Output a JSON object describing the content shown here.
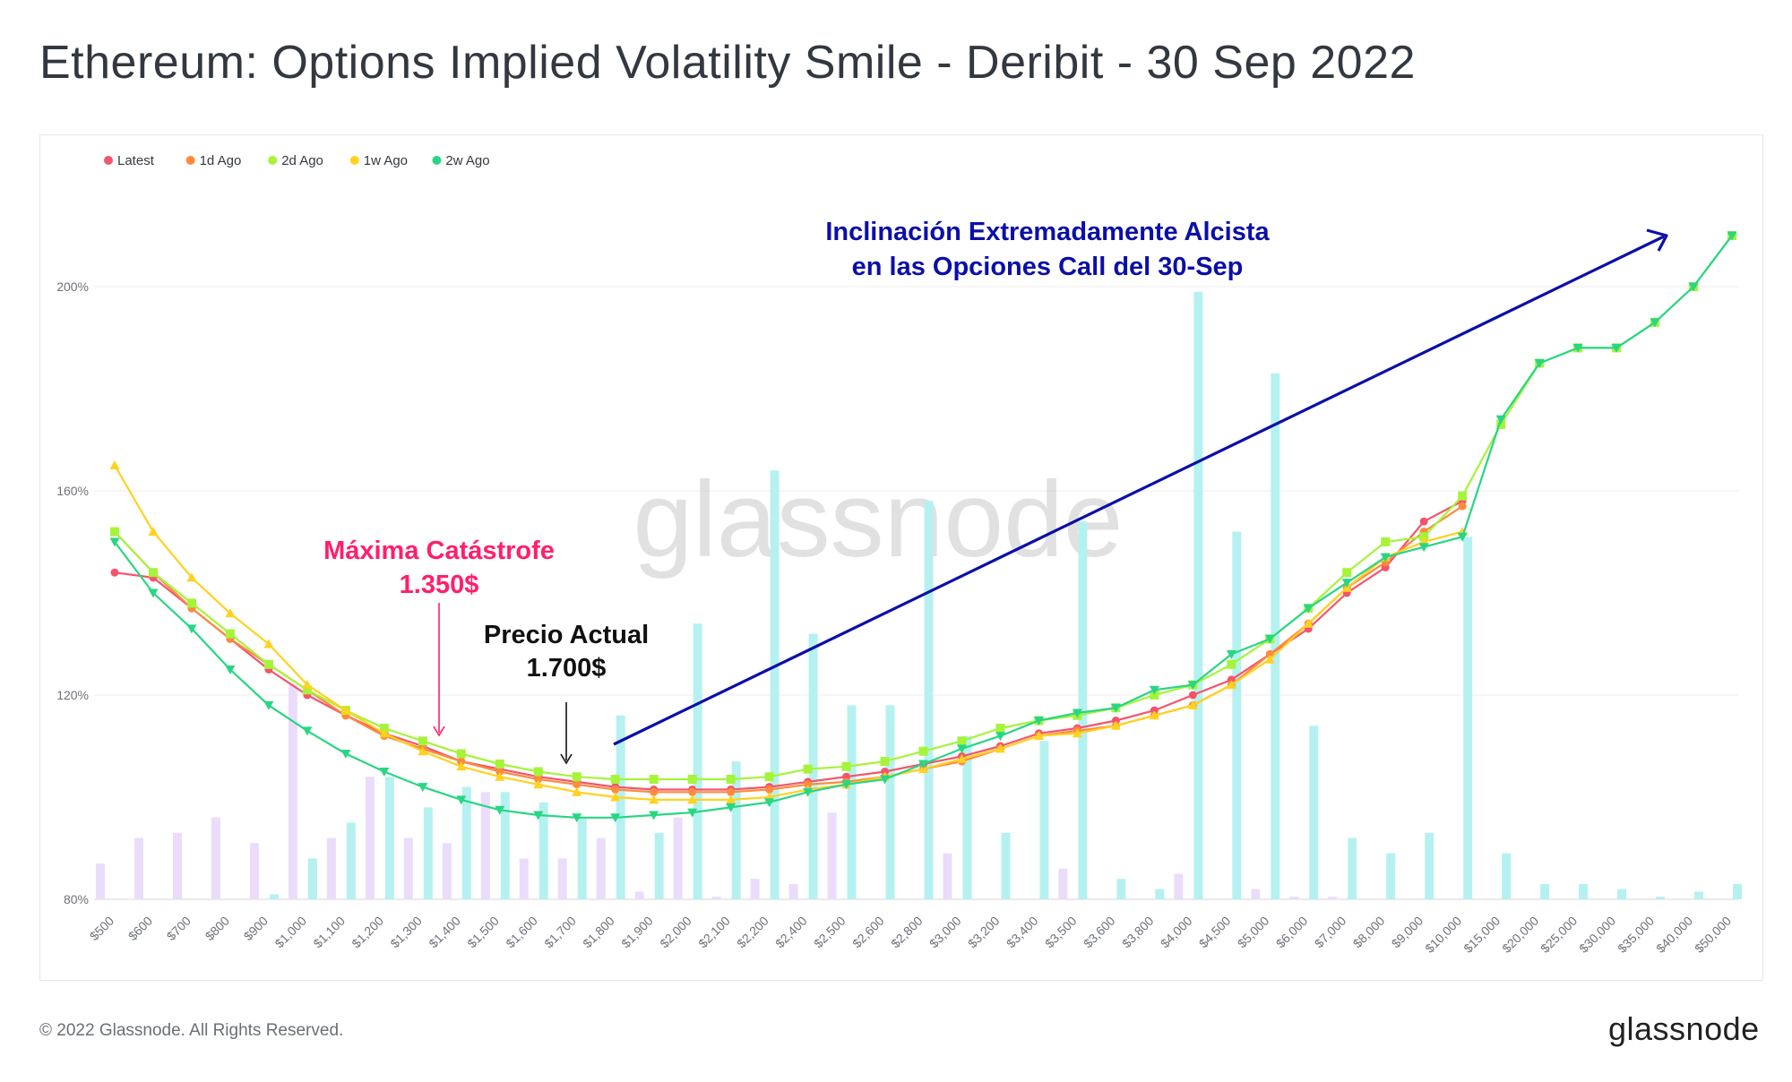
{
  "title": "Ethereum: Options Implied Volatility Smile - Deribit - 30 Sep 2022",
  "watermark": "glassnode",
  "footer": {
    "copyright": "© 2022 Glassnode. All Rights Reserved.",
    "logo": "glassnode"
  },
  "annotations": {
    "max_pain": {
      "line1": "Máxima Catástrofe",
      "line2": "1.350$",
      "color": "#ff1f6a"
    },
    "current_price": {
      "line1": "Precio Actual",
      "line2": "1.700$",
      "color": "#111111"
    },
    "skew": {
      "line1": "Inclinación Extremadamente Alcista",
      "line2": "en las Opciones Call del 30-Sep",
      "color": "#0b0fa8"
    }
  },
  "chart_data": {
    "type": "line",
    "title": "Ethereum: Options Implied Volatility Smile - Deribit - 30 Sep 2022",
    "ylim": [
      80,
      230
    ],
    "yticks": [
      80,
      120,
      160,
      200
    ],
    "ytick_labels": [
      "80%",
      "120%",
      "160%",
      "200%"
    ],
    "categories": [
      "$500",
      "$600",
      "$700",
      "$800",
      "$900",
      "$1,000",
      "$1,100",
      "$1,200",
      "$1,300",
      "$1,400",
      "$1,500",
      "$1,600",
      "$1,700",
      "$1,800",
      "$1,900",
      "$2,000",
      "$2,100",
      "$2,200",
      "$2,400",
      "$2,500",
      "$2,600",
      "$2,800",
      "$3,000",
      "$3,200",
      "$3,400",
      "$3,500",
      "$3,600",
      "$3,800",
      "$4,000",
      "$4,500",
      "$5,000",
      "$6,000",
      "$7,000",
      "$8,000",
      "$9,000",
      "$10,000",
      "$15,000",
      "$20,000",
      "$25,000",
      "$30,000",
      "$35,000",
      "$40,000",
      "$50,000"
    ],
    "series": [
      {
        "name": "Latest",
        "color": "#f4546c",
        "marker": "circle",
        "values": [
          144,
          143,
          137,
          131,
          125,
          120,
          116,
          112.5,
          110,
          107,
          105.5,
          104,
          103,
          102,
          101.5,
          101.5,
          101.5,
          102,
          103,
          104,
          105,
          106.5,
          108,
          110,
          112.5,
          113.5,
          115,
          117,
          120,
          123,
          128,
          133,
          140,
          145,
          154,
          158,
          null,
          null,
          null,
          null,
          null,
          null,
          null
        ]
      },
      {
        "name": "1d Ago",
        "color": "#ff8a3d",
        "marker": "circle",
        "values": [
          152,
          144,
          137,
          131,
          126,
          121,
          116,
          112,
          109.5,
          107,
          105,
          103.5,
          102.5,
          101.5,
          101,
          101,
          101,
          101.5,
          102.5,
          103,
          104,
          105.5,
          107,
          109.5,
          112,
          113,
          114,
          116,
          118,
          122,
          128,
          134,
          141,
          146,
          152,
          157,
          null,
          null,
          null,
          null,
          null,
          null,
          null
        ]
      },
      {
        "name": "2d Ago",
        "color": "#a6f43a",
        "marker": "square",
        "values": [
          152,
          144,
          138,
          132,
          126,
          121,
          117,
          113.5,
          111,
          108.5,
          106.5,
          105,
          104,
          103.5,
          103.5,
          103.5,
          103.5,
          104,
          105.5,
          106,
          107,
          109,
          111,
          113.5,
          115,
          116,
          117.5,
          120,
          122,
          126,
          131,
          137,
          144,
          150,
          151,
          159,
          173,
          185,
          188,
          188,
          193,
          200,
          210
        ]
      },
      {
        "name": "1w Ago",
        "color": "#ffd21f",
        "marker": "triangle-up",
        "values": [
          165,
          152,
          143,
          136,
          130,
          122,
          117,
          112.5,
          109,
          106,
          104,
          102.5,
          101,
          100,
          99.5,
          99.5,
          99.5,
          100,
          101.5,
          102.5,
          104,
          105.5,
          107.5,
          109.5,
          112,
          112.5,
          114,
          116,
          118,
          122,
          127,
          134,
          141,
          147,
          150,
          152,
          null,
          null,
          null,
          null,
          null,
          null,
          null
        ]
      },
      {
        "name": "2w Ago",
        "color": "#28d684",
        "marker": "triangle-down",
        "values": [
          150,
          140,
          133,
          125,
          118,
          113,
          108.5,
          105,
          102,
          99.5,
          97.5,
          96.5,
          96,
          96,
          96.5,
          97,
          98,
          99,
          101,
          102.5,
          103.5,
          106.5,
          109.5,
          112,
          115,
          116.5,
          117.5,
          121,
          122,
          128,
          131,
          137,
          142,
          147,
          149,
          151,
          174,
          185,
          188,
          188,
          193,
          200,
          210
        ]
      }
    ],
    "bars": {
      "calls": [
        null,
        null,
        null,
        null,
        81,
        88,
        95,
        104,
        98,
        102,
        101,
        99,
        96,
        116,
        93,
        134,
        107,
        164,
        132,
        118,
        118,
        158,
        112,
        93,
        111,
        154,
        84,
        82,
        199,
        152,
        183,
        114,
        92,
        89,
        93,
        151,
        89,
        83,
        83,
        82,
        80.5,
        81.5,
        83
      ],
      "puts": [
        87,
        92,
        93,
        96,
        91,
        122,
        92,
        104,
        92,
        91,
        101,
        88,
        88,
        92,
        81.5,
        96,
        80.5,
        84,
        83,
        97,
        null,
        null,
        89,
        null,
        null,
        86,
        null,
        null,
        85,
        null,
        82,
        80.5,
        80.5,
        null,
        null,
        null,
        null,
        null,
        null,
        null,
        null,
        null,
        null
      ]
    },
    "bar_colors": {
      "calls": "#b6f1f1",
      "puts": "#ecdcfb"
    },
    "legend_position": "top-left",
    "grid": true
  }
}
